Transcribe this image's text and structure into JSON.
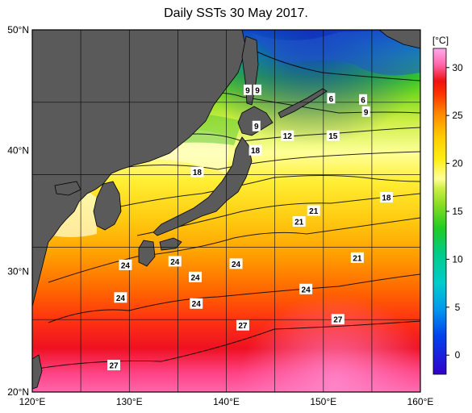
{
  "title": "Daily SSTs 30 May 2017.",
  "map": {
    "lon_range": [
      120,
      160
    ],
    "lat_range": [
      20,
      50
    ],
    "lon_ticks": [
      {
        "value": 120,
        "label": "120°E"
      },
      {
        "value": 130,
        "label": "130°E"
      },
      {
        "value": 140,
        "label": "140°E"
      },
      {
        "value": 150,
        "label": "150°E"
      },
      {
        "value": 160,
        "label": "160°E"
      }
    ],
    "lat_ticks": [
      {
        "value": 20,
        "label": "20°N"
      },
      {
        "value": 30,
        "label": "30°N"
      },
      {
        "value": 40,
        "label": "40°N"
      },
      {
        "value": 50,
        "label": "50°N"
      }
    ],
    "land_color": "#5a5a5a",
    "grid_color": "#000000"
  },
  "colorbar": {
    "unit_label": "[°C]",
    "range": [
      -2,
      32
    ],
    "ticks": [
      {
        "value": 30,
        "label": "30"
      },
      {
        "value": 25,
        "label": "25"
      },
      {
        "value": 20,
        "label": "20"
      },
      {
        "value": 15,
        "label": "15"
      },
      {
        "value": 10,
        "label": "10"
      },
      {
        "value": 5,
        "label": "5"
      },
      {
        "value": 0,
        "label": "0"
      }
    ],
    "colors": [
      "#3300cc",
      "#0044ee",
      "#0099ee",
      "#00cccc",
      "#00cc88",
      "#22cc22",
      "#88dd22",
      "#ccee22",
      "#ffee11",
      "#ffcc00",
      "#ff8800",
      "#ff3300",
      "#ee1111",
      "#ff66aa",
      "#ffaaee"
    ]
  },
  "contour_labels": [
    {
      "text": "9",
      "lon": 142.2,
      "lat": 45.0
    },
    {
      "text": "9",
      "lon": 143.2,
      "lat": 45.0
    },
    {
      "text": "6",
      "lon": 150.8,
      "lat": 44.3
    },
    {
      "text": "6",
      "lon": 154.1,
      "lat": 44.2
    },
    {
      "text": "9",
      "lon": 154.4,
      "lat": 43.2
    },
    {
      "text": "9",
      "lon": 143.1,
      "lat": 42.0
    },
    {
      "text": "12",
      "lon": 146.3,
      "lat": 41.2
    },
    {
      "text": "15",
      "lon": 151.0,
      "lat": 41.2
    },
    {
      "text": "18",
      "lon": 143.0,
      "lat": 40.0
    },
    {
      "text": "18",
      "lon": 137.0,
      "lat": 38.2
    },
    {
      "text": "18",
      "lon": 156.5,
      "lat": 36.1
    },
    {
      "text": "21",
      "lon": 149.0,
      "lat": 35.0
    },
    {
      "text": "21",
      "lon": 147.5,
      "lat": 34.1
    },
    {
      "text": "21",
      "lon": 153.5,
      "lat": 31.1
    },
    {
      "text": "24",
      "lon": 129.6,
      "lat": 30.5
    },
    {
      "text": "24",
      "lon": 134.7,
      "lat": 30.8
    },
    {
      "text": "24",
      "lon": 136.8,
      "lat": 29.5
    },
    {
      "text": "24",
      "lon": 141.0,
      "lat": 30.6
    },
    {
      "text": "24",
      "lon": 148.2,
      "lat": 28.5
    },
    {
      "text": "24",
      "lon": 129.1,
      "lat": 27.8
    },
    {
      "text": "24",
      "lon": 136.9,
      "lat": 27.3
    },
    {
      "text": "27",
      "lon": 151.5,
      "lat": 26.0
    },
    {
      "text": "27",
      "lon": 141.7,
      "lat": 25.5
    },
    {
      "text": "27",
      "lon": 128.4,
      "lat": 22.2
    }
  ]
}
